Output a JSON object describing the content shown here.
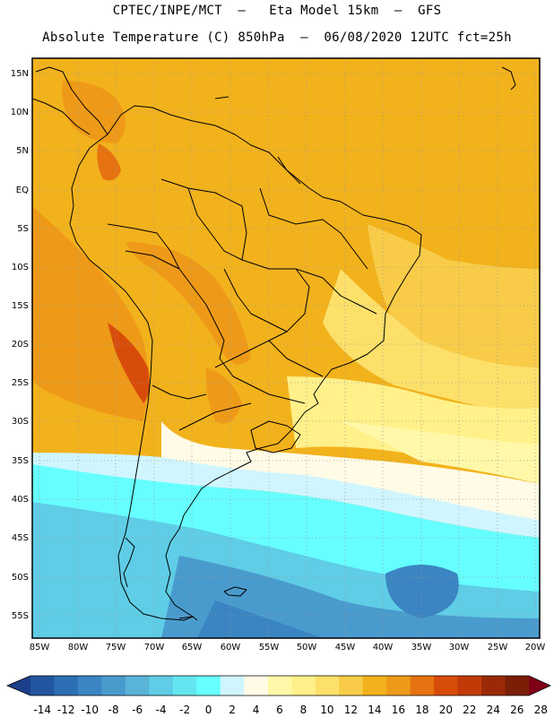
{
  "header": {
    "line1": "CPTEC/INPE/MCT  –   Eta Model 15km  –  GFS",
    "line2": "Absolute Temperature (C) 850hPa  –  06/08/2020 12UTC fct=25h"
  },
  "axes": {
    "lat_labels": [
      "15N",
      "10N",
      "5N",
      "EQ",
      "5S",
      "10S",
      "15S",
      "20S",
      "25S",
      "30S",
      "35S",
      "40S",
      "45S",
      "50S",
      "55S"
    ],
    "lon_labels": [
      "85W",
      "80W",
      "75W",
      "70W",
      "65W",
      "60W",
      "55W",
      "50W",
      "45W",
      "40W",
      "35W",
      "30W",
      "25W",
      "20W"
    ]
  },
  "colorbar": {
    "labels": [
      "-14",
      "-12",
      "-10",
      "-8",
      "-6",
      "-4",
      "-2",
      "0",
      "2",
      "4",
      "6",
      "8",
      "10",
      "12",
      "14",
      "16",
      "18",
      "20",
      "22",
      "24",
      "26",
      "28"
    ],
    "colors": [
      "#1c3f8a",
      "#2356a0",
      "#2d6fb4",
      "#3a85c2",
      "#4a9bcd",
      "#5ab4d8",
      "#5fcde6",
      "#64e6f0",
      "#66ffff",
      "#d0f5ff",
      "#fffbe6",
      "#fff8a8",
      "#fff08a",
      "#fde06a",
      "#f8cc48",
      "#f2b21c",
      "#ee9a18",
      "#e67210",
      "#d84c0a",
      "#c23a08",
      "#9a2a06",
      "#7a1e06",
      "#800018"
    ]
  },
  "map_colors": {
    "water": "#3fd8ea",
    "land_border": "#000000"
  }
}
